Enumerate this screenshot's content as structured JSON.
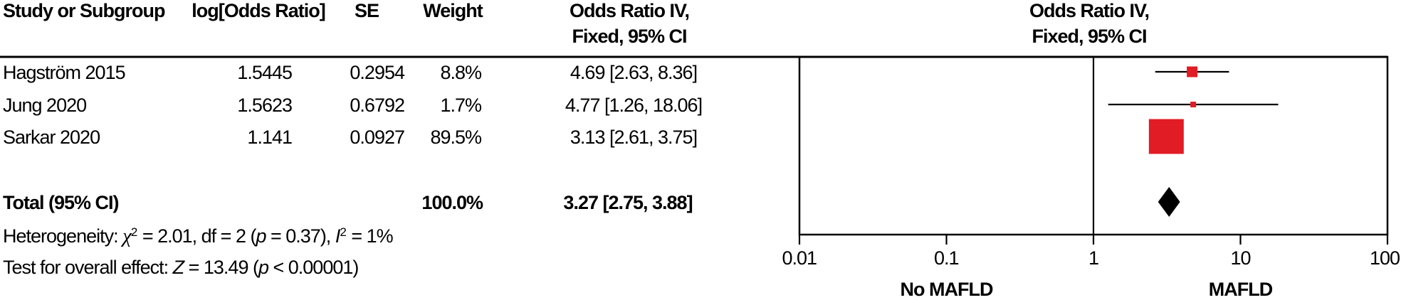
{
  "table": {
    "headers": {
      "study": "Study or Subgroup",
      "log_or": "log[Odds Ratio]",
      "se": "SE",
      "weight": "Weight",
      "or_ci_line1": "Odds Ratio IV,",
      "or_ci_line2": "Fixed, 95% CI"
    },
    "rows": [
      {
        "study": "Hagström 2015",
        "log_or": "1.5445",
        "se": "0.2954",
        "weight": "8.8%",
        "or_ci": "4.69 [2.63, 8.36]"
      },
      {
        "study": "Jung 2020",
        "log_or": "1.5623",
        "se": "0.6792",
        "weight": "1.7%",
        "or_ci": "4.77 [1.26, 18.06]"
      },
      {
        "study": "Sarkar 2020",
        "log_or": "1.141",
        "se": "0.0927",
        "weight": "89.5%",
        "or_ci": "3.13 [2.61, 3.75]"
      }
    ],
    "total": {
      "label": "Total (95% CI)",
      "weight": "100.0%",
      "or_ci": "3.27 [2.75, 3.88]"
    },
    "heterogeneity": {
      "prefix": "Heterogeneity: ",
      "chi": "χ",
      "chi_sup": "2",
      "mid1": " = 2.01, df = 2 (",
      "p": "p",
      "mid2": " = 0.37), ",
      "i": "I",
      "i_sup": "2",
      "suffix": " = 1%"
    },
    "overall_effect": {
      "prefix": "Test for overall effect: ",
      "z": "Z",
      "mid1": " = 13.49 (",
      "p": "p",
      "suffix": " < 0.00001)"
    }
  },
  "plot": {
    "header_line1": "Odds Ratio IV,",
    "header_line2": "Fixed, 95% CI",
    "axis_ticks": [
      "0.01",
      "0.1",
      "1",
      "10",
      "100"
    ],
    "left_label": "No MAFLD",
    "right_label": "MAFLD",
    "marker_color": "#e11c24",
    "diamond_color": "#000000",
    "line_color": "#000000"
  },
  "chart_data": {
    "type": "scatter",
    "variant": "forest_plot_meta_analysis",
    "effect_measure": "Odds Ratio IV, Fixed, 95% CI",
    "x_scale": "log10",
    "x_range": [
      0.01,
      100
    ],
    "x_ticks": [
      0.01,
      0.1,
      1,
      10,
      100
    ],
    "null_line": 1,
    "left_label_x": 0.1,
    "right_label_x": 10,
    "studies": [
      {
        "name": "Hagström 2015",
        "log_or": 1.5445,
        "se": 0.2954,
        "weight_pct": 8.8,
        "or": 4.69,
        "ci_low": 2.63,
        "ci_high": 8.36
      },
      {
        "name": "Jung 2020",
        "log_or": 1.5623,
        "se": 0.6792,
        "weight_pct": 1.7,
        "or": 4.77,
        "ci_low": 1.26,
        "ci_high": 18.06
      },
      {
        "name": "Sarkar 2020",
        "log_or": 1.141,
        "se": 0.0927,
        "weight_pct": 89.5,
        "or": 3.13,
        "ci_low": 2.61,
        "ci_high": 3.75
      }
    ],
    "total": {
      "or": 3.27,
      "ci_low": 2.75,
      "ci_high": 3.88,
      "weight_pct": 100.0
    },
    "heterogeneity": {
      "chi2": 2.01,
      "df": 2,
      "p": 0.37,
      "i2_pct": 1
    },
    "overall_effect": {
      "z": 13.49,
      "p": "< 0.00001"
    },
    "favours_left": "No MAFLD",
    "favours_right": "MAFLD"
  }
}
